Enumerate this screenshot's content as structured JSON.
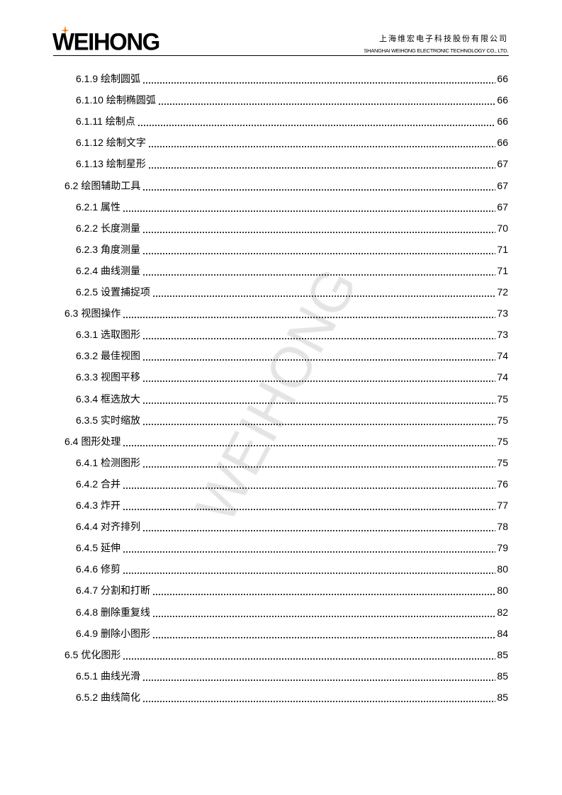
{
  "header": {
    "logo": "WEIHONG",
    "company_cn": "上海维宏电子科技股份有限公司",
    "company_en": "SHANGHAI WEIHONG ELECTRONIC TECHNOLOGY CO., LTD."
  },
  "watermark": "WEIHONG",
  "toc": [
    {
      "level": 2,
      "title": "6.1.9 绘制圆弧",
      "page": "66"
    },
    {
      "level": 2,
      "title": "6.1.10 绘制椭圆弧",
      "page": "66"
    },
    {
      "level": 2,
      "title": "6.1.11 绘制点",
      "page": "66"
    },
    {
      "level": 2,
      "title": "6.1.12 绘制文字",
      "page": "66"
    },
    {
      "level": 2,
      "title": "6.1.13 绘制星形",
      "page": "67"
    },
    {
      "level": 1,
      "title": "6.2 绘图辅助工具",
      "page": "67"
    },
    {
      "level": 2,
      "title": "6.2.1 属性",
      "page": "67"
    },
    {
      "level": 2,
      "title": "6.2.2 长度测量",
      "page": "70"
    },
    {
      "level": 2,
      "title": "6.2.3 角度测量",
      "page": "71"
    },
    {
      "level": 2,
      "title": "6.2.4 曲线测量",
      "page": "71"
    },
    {
      "level": 2,
      "title": "6.2.5 设置捕捉项",
      "page": "72"
    },
    {
      "level": 1,
      "title": "6.3 视图操作",
      "page": "73"
    },
    {
      "level": 2,
      "title": "6.3.1 选取图形",
      "page": "73"
    },
    {
      "level": 2,
      "title": "6.3.2 最佳视图",
      "page": "74"
    },
    {
      "level": 2,
      "title": "6.3.3 视图平移",
      "page": "74"
    },
    {
      "level": 2,
      "title": "6.3.4 框选放大",
      "page": "75"
    },
    {
      "level": 2,
      "title": "6.3.5 实时缩放",
      "page": "75"
    },
    {
      "level": 1,
      "title": "6.4 图形处理",
      "page": "75"
    },
    {
      "level": 2,
      "title": "6.4.1 检测图形",
      "page": "75"
    },
    {
      "level": 2,
      "title": "6.4.2 合并",
      "page": "76"
    },
    {
      "level": 2,
      "title": "6.4.3 炸开",
      "page": "77"
    },
    {
      "level": 2,
      "title": "6.4.4 对齐排列",
      "page": "78"
    },
    {
      "level": 2,
      "title": "6.4.5 延伸",
      "page": "79"
    },
    {
      "level": 2,
      "title": "6.4.6 修剪",
      "page": "80"
    },
    {
      "level": 2,
      "title": "6.4.7 分割和打断",
      "page": "80"
    },
    {
      "level": 2,
      "title": "6.4.8 删除重复线",
      "page": "82"
    },
    {
      "level": 2,
      "title": "6.4.9 删除小图形",
      "page": "84"
    },
    {
      "level": 1,
      "title": "6.5 优化图形",
      "page": "85"
    },
    {
      "level": 2,
      "title": "6.5.1 曲线光滑",
      "page": "85"
    },
    {
      "level": 2,
      "title": "6.5.2 曲线简化",
      "page": "85"
    }
  ]
}
